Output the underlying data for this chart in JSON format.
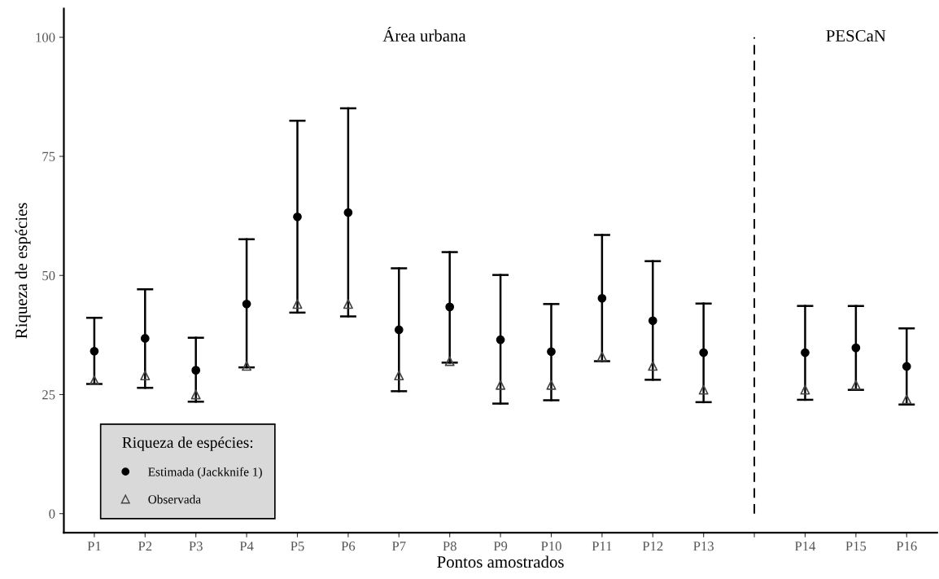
{
  "chart_data": {
    "type": "scatter",
    "xlabel": "Pontos amostrados",
    "ylabel": "Riqueza de espécies",
    "legend_title": "Riqueza de espécies:",
    "legend": "bottom left",
    "categories": [
      "P1",
      "P2",
      "P3",
      "P4",
      "P5",
      "P6",
      "P7",
      "P8",
      "P9",
      "P10",
      "P11",
      "P12",
      "P13",
      null,
      "P14",
      "P15",
      "P16"
    ],
    "series": [
      {
        "name": "Estimada (Jackknife 1)",
        "color": "#000000",
        "marker": "circle",
        "values": [
          34.1,
          36.8,
          30.1,
          44.0,
          62.3,
          63.2,
          38.6,
          43.4,
          36.5,
          34.0,
          45.2,
          40.5,
          33.8,
          null,
          33.8,
          34.8,
          30.9
        ],
        "errors": [
          [
            27.2,
            41.1
          ],
          [
            26.4,
            47.1
          ],
          [
            23.5,
            36.9
          ],
          [
            30.7,
            57.6
          ],
          [
            42.2,
            82.5
          ],
          [
            41.4,
            85.1
          ],
          [
            25.7,
            51.5
          ],
          [
            31.7,
            54.9
          ],
          [
            23.1,
            50.1
          ],
          [
            23.8,
            44.0
          ],
          [
            32.0,
            58.5
          ],
          [
            28.1,
            53.0
          ],
          [
            23.4,
            44.1
          ],
          null,
          [
            23.9,
            43.6
          ],
          [
            26.0,
            43.6
          ],
          [
            22.9,
            38.9
          ]
        ]
      },
      {
        "name": "Observada",
        "color": "#444444",
        "marker": "triangle",
        "values": [
          28,
          29,
          25,
          31,
          44,
          44,
          29,
          32,
          27,
          27,
          33,
          31,
          26,
          null,
          26,
          27,
          24
        ]
      }
    ],
    "ref_lines": [
      {
        "axis": "x",
        "value": null,
        "color": "#000000",
        "line_style": "dashed"
      }
    ],
    "annotations": [
      "Área urbana",
      "PESCaN"
    ],
    "ylim": [
      -4,
      106
    ],
    "yticks": [
      0,
      25,
      50,
      75,
      100
    ]
  }
}
